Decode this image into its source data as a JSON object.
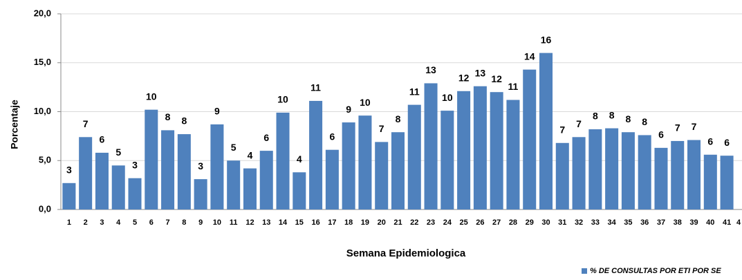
{
  "chart_data": {
    "type": "bar",
    "xlabel": "Semana Epidemiologica",
    "ylabel": "Porcentaje",
    "categories": [
      "1",
      "2",
      "3",
      "4",
      "5",
      "6",
      "7",
      "8",
      "9",
      "10",
      "11",
      "12",
      "13",
      "14",
      "15",
      "16",
      "17",
      "18",
      "19",
      "20",
      "21",
      "22",
      "23",
      "24",
      "25",
      "26",
      "27",
      "28",
      "29",
      "30",
      "31",
      "32",
      "33",
      "34",
      "35",
      "36",
      "37",
      "38",
      "39",
      "40",
      "41",
      "4"
    ],
    "series": [
      {
        "name": "% DE CONSULTAS POR ETI POR SE",
        "color": "#4f81bd",
        "values": [
          2.7,
          7.4,
          5.8,
          4.5,
          3.2,
          10.2,
          8.1,
          7.7,
          3.1,
          8.7,
          5.0,
          4.2,
          6.0,
          9.9,
          3.8,
          11.1,
          6.1,
          8.9,
          9.6,
          6.9,
          7.9,
          10.7,
          12.9,
          10.1,
          12.1,
          12.6,
          12.0,
          11.2,
          14.3,
          16.0,
          6.8,
          7.4,
          8.2,
          8.3,
          7.9,
          7.6,
          6.3,
          7.0,
          7.1,
          5.6,
          5.5,
          null
        ],
        "value_labels": [
          "3",
          "7",
          "6",
          "5",
          "3",
          "10",
          "8",
          "8",
          "3",
          "9",
          "5",
          "4",
          "6",
          "10",
          "4",
          "11",
          "6",
          "9",
          "10",
          "7",
          "8",
          "11",
          "13",
          "10",
          "12",
          "13",
          "12",
          "11",
          "14",
          "16",
          "7",
          "7",
          "8",
          "8",
          "8",
          "8",
          "6",
          "7",
          "7",
          "6",
          "6",
          null
        ]
      }
    ],
    "ylim": [
      0,
      20
    ],
    "yticks": [
      {
        "value": 0,
        "label": "0,0"
      },
      {
        "value": 5,
        "label": "5,0"
      },
      {
        "value": 10,
        "label": "10,0"
      },
      {
        "value": 15,
        "label": "15,0"
      },
      {
        "value": 20,
        "label": "20,0"
      }
    ],
    "grid": true,
    "legend": "bottom-right"
  }
}
